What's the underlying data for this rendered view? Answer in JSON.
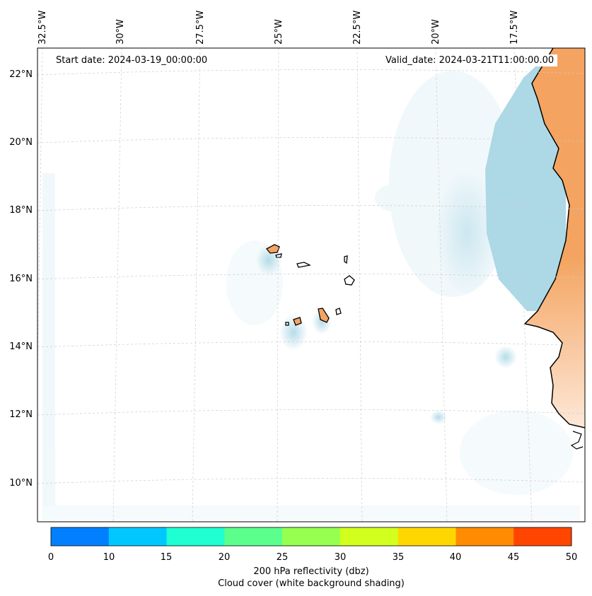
{
  "map": {
    "start_date": "Start date: 2024-03-19_00:00:00",
    "valid_date": "Valid_date: 2024-03-21T11:00:00.00",
    "lat_labels": [
      "22°N",
      "20°N",
      "18°N",
      "16°N",
      "14°N",
      "12°N",
      "10°N"
    ],
    "lon_labels": [
      "32.5°W",
      "30°W",
      "27.5°W",
      "25°W",
      "22.5°W",
      "20°W",
      "17.5°W"
    ],
    "land_color": "#f4a460",
    "cloud_color": "#add8e6",
    "region": "Cabo Verde islands and West African coast"
  },
  "colorbar": {
    "ticks": [
      "0",
      "10",
      "15",
      "20",
      "25",
      "30",
      "35",
      "40",
      "45",
      "50"
    ],
    "colors": [
      "#0080ff",
      "#00c8ff",
      "#1effd2",
      "#5aff8c",
      "#96ff50",
      "#d2ff1e",
      "#ffd700",
      "#ff8c00",
      "#ff4500"
    ],
    "label": "200 hPa reflectivity (dbz)",
    "sublabel": "Cloud cover (white background shading)"
  }
}
